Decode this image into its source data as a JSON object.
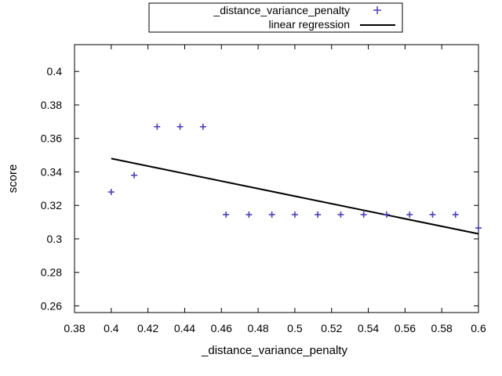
{
  "chart_data": {
    "type": "scatter",
    "title": "",
    "xlabel": "_distance_variance_penalty",
    "ylabel": "score",
    "xlim": [
      0.38,
      0.6
    ],
    "ylim": [
      0.256,
      0.416
    ],
    "x_ticks": [
      0.38,
      0.4,
      0.42,
      0.44,
      0.46,
      0.48,
      0.5,
      0.52,
      0.54,
      0.56,
      0.58,
      0.6
    ],
    "y_ticks": [
      0.26,
      0.28,
      0.3,
      0.32,
      0.34,
      0.36,
      0.38,
      0.4
    ],
    "grid": false,
    "legend_position": "top-center outside",
    "series": [
      {
        "name": "_distance_variance_penalty",
        "type": "scatter",
        "marker": "plus",
        "color": "#4a3fb5",
        "points": [
          {
            "x": 0.4,
            "y": 0.328
          },
          {
            "x": 0.4125,
            "y": 0.338
          },
          {
            "x": 0.425,
            "y": 0.367
          },
          {
            "x": 0.4375,
            "y": 0.367
          },
          {
            "x": 0.45,
            "y": 0.367
          },
          {
            "x": 0.4625,
            "y": 0.3145
          },
          {
            "x": 0.475,
            "y": 0.3145
          },
          {
            "x": 0.4875,
            "y": 0.3145
          },
          {
            "x": 0.5,
            "y": 0.3145
          },
          {
            "x": 0.5125,
            "y": 0.3145
          },
          {
            "x": 0.525,
            "y": 0.3145
          },
          {
            "x": 0.5375,
            "y": 0.3145
          },
          {
            "x": 0.55,
            "y": 0.3145
          },
          {
            "x": 0.5625,
            "y": 0.3145
          },
          {
            "x": 0.575,
            "y": 0.3145
          },
          {
            "x": 0.5875,
            "y": 0.3145
          },
          {
            "x": 0.6,
            "y": 0.3065
          }
        ]
      },
      {
        "name": "linear regression",
        "type": "line",
        "color": "#000000",
        "points": [
          {
            "x": 0.4,
            "y": 0.348
          },
          {
            "x": 0.6,
            "y": 0.303
          }
        ]
      }
    ]
  }
}
